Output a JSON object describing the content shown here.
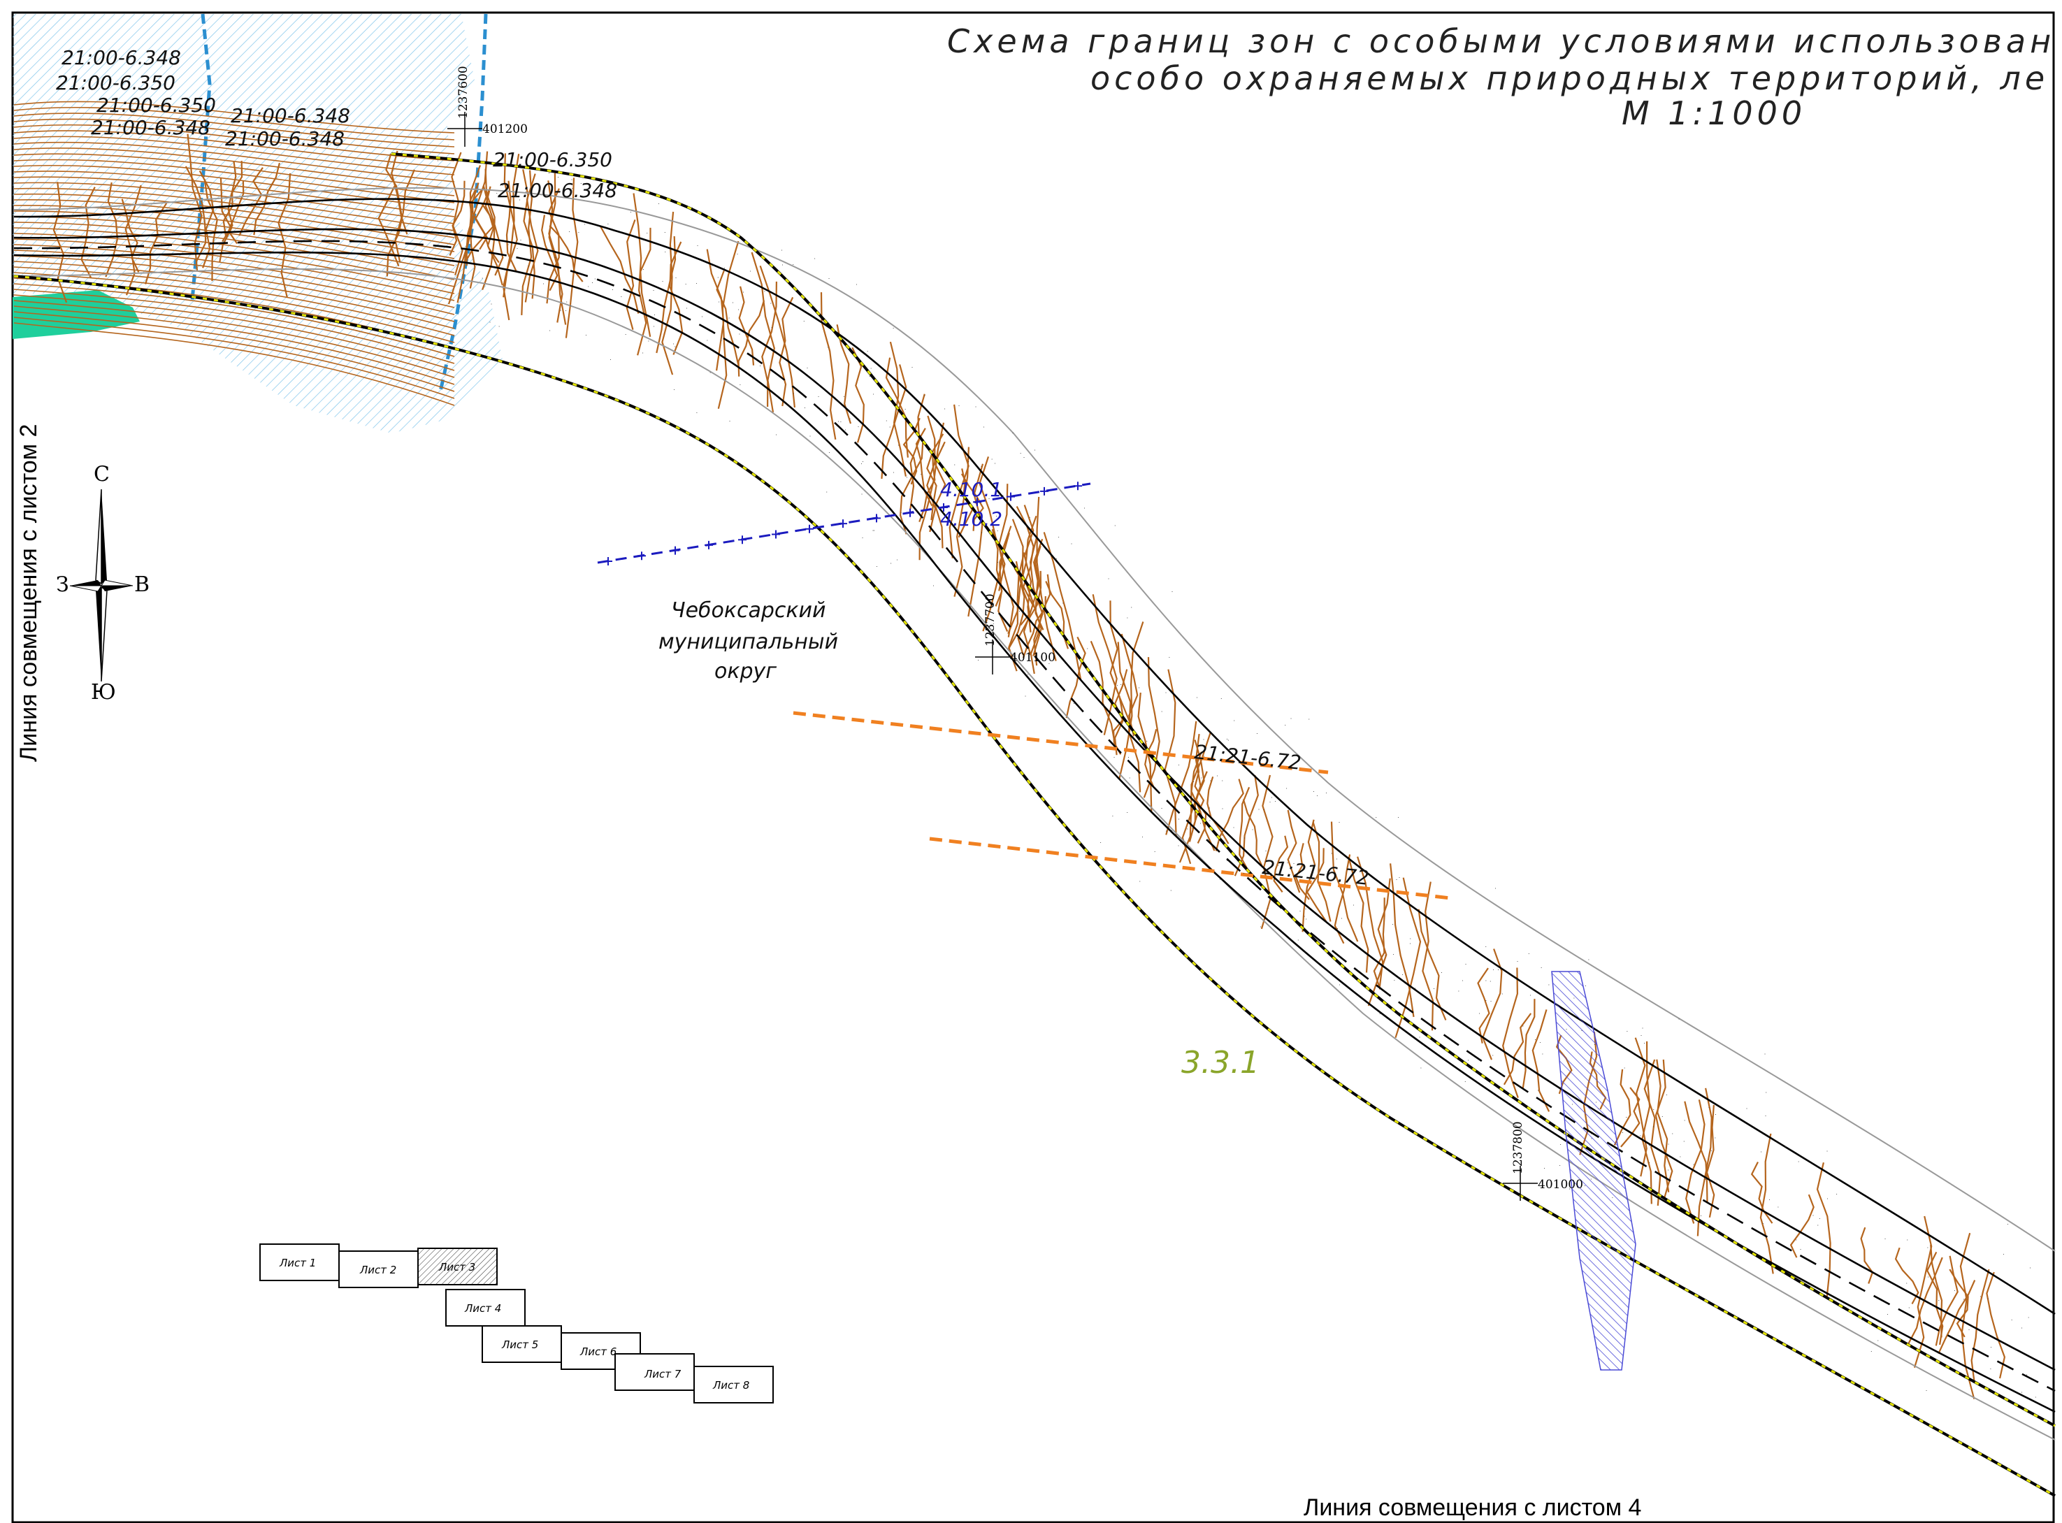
{
  "title": {
    "line1": "Схема границ зон с особыми условиями использован",
    "line2": "особо охраняемых природных территорий, ле",
    "line3": "М 1:1000"
  },
  "edges": {
    "left": "Линия совмещения с листом 2",
    "bottom": "Линия совмещения с листом 4"
  },
  "compass": {
    "north": "С",
    "south": "Ю",
    "west": "З",
    "east": "В"
  },
  "municipality": {
    "line1": "Чебоксарский",
    "line2": "муниципальный",
    "line3": "округ"
  },
  "zone_labels": {
    "a1": "21:00-6.348",
    "a2": "21:00-6.350",
    "a3": "21:00-6.350",
    "a4": "21:00-6.348",
    "b1": "21:00-6.348",
    "b2": "21:00-6.348",
    "c1": "21:00-6.350",
    "c2": "21:00-6.348",
    "d1": "21:21-6.72",
    "d2": "21:21-6.72"
  },
  "blue_labels": {
    "l1": "4.10.1",
    "l2": "4.10.2"
  },
  "green_label": "3.3.1",
  "grid_marks": {
    "m1_h": "401200",
    "m1_v": "1237600",
    "m2_h": "401100",
    "m2_v": "1237700",
    "m3_h": "401000",
    "m3_v": "1237800"
  },
  "sheets": [
    "Лист 1",
    "Лист 2",
    "Лист 3",
    "Лист 4",
    "Лист 5",
    "Лист 6",
    "Лист 7",
    "Лист 8"
  ],
  "active_sheet": "Лист 3",
  "colors": {
    "contour": "#b5651d",
    "water_hatch": "#4aa3d6",
    "green_fill": "#1fcf9c",
    "zone_orange": "#f08020",
    "zone_blue": "#1b1bbf",
    "road_yellow": "#e6e600"
  }
}
